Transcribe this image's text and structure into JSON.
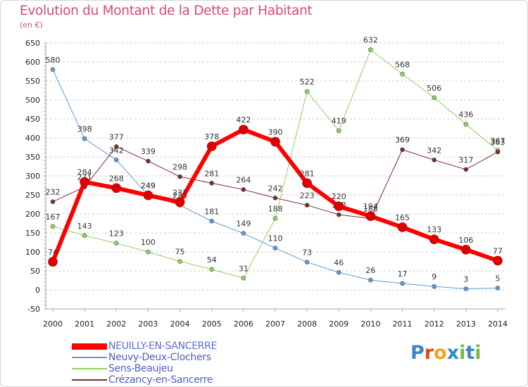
{
  "title": "Evolution du Montant de la Dette par Habitant",
  "unit": "(en €)",
  "logo": {
    "text": "Proxiti",
    "letters": [
      "P",
      "r",
      "o",
      "x",
      "i",
      "t",
      "i"
    ],
    "colors": [
      "#3b86c8",
      "#e0491e",
      "#f2a31b",
      "#2c8bcb",
      "#7ab648",
      "#3b86c8",
      "#7ab648"
    ]
  },
  "chart_data": {
    "type": "line",
    "title": "Evolution du Montant de la Dette par Habitant",
    "ylabel": "(en €)",
    "xlabel": "",
    "x": [
      "2000",
      "2001",
      "2002",
      "2003",
      "2004",
      "2005",
      "2006",
      "2007",
      "2008",
      "2009",
      "2010",
      "2011",
      "2012",
      "2013",
      "2014"
    ],
    "ylim": [
      -50,
      650
    ],
    "yticks": [
      -50,
      0,
      50,
      100,
      150,
      200,
      250,
      300,
      350,
      400,
      450,
      500,
      550,
      600,
      650
    ],
    "grid": "horizontal dashed",
    "legend": "bottom-left",
    "series": [
      {
        "name": "Neuvy-Deux-Clochers",
        "color": "#5b9bd5",
        "width": 1,
        "values": [
          580,
          398,
          342,
          249,
          223,
          181,
          149,
          110,
          73,
          46,
          26,
          17,
          9,
          3,
          5
        ]
      },
      {
        "name": "Sens-Beaujeu",
        "color": "#8fd15a",
        "width": 1,
        "values": [
          167,
          143,
          123,
          100,
          75,
          54,
          31,
          188,
          522,
          419,
          632,
          568,
          506,
          436,
          367
        ]
      },
      {
        "name": "Crézancy-en-Sancerre",
        "color": "#7a2a30",
        "width": 1,
        "values": [
          232,
          271,
          377,
          339,
          298,
          281,
          264,
          242,
          223,
          198,
          188,
          369,
          342,
          317,
          363
        ]
      },
      {
        "name": "NEUILLY-EN-SANCERRE",
        "color": "#ff0000",
        "width": 6,
        "values": [
          74,
          284,
          268,
          249,
          231,
          378,
          422,
          390,
          281,
          220,
          194,
          165,
          133,
          106,
          77
        ]
      }
    ],
    "legend_order": [
      "NEUILLY-EN-SANCERRE",
      "Neuvy-Deux-Clochers",
      "Sens-Beaujeu",
      "Crézancy-en-Sancerre"
    ]
  }
}
